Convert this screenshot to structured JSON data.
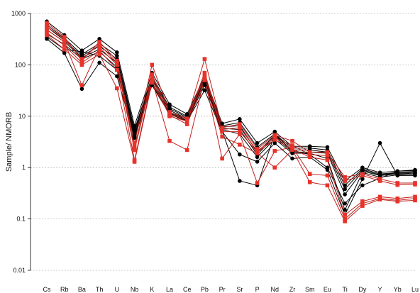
{
  "chart_data": {
    "type": "line",
    "ylabel": "Sample/ NMORB",
    "xlabel": "",
    "y_scale": "log",
    "ylim": [
      0.01,
      1000
    ],
    "y_ticks": [
      1000,
      100,
      10,
      1,
      0.1,
      0.01
    ],
    "y_tick_labels": [
      "1000",
      "100",
      "10",
      "1",
      "0.1",
      "0.01"
    ],
    "grid": "horizontal dotted",
    "legend": "none",
    "categories": [
      "Cs",
      "Rb",
      "Ba",
      "Th",
      "U",
      "Nb",
      "K",
      "La",
      "Ce",
      "Pb",
      "Pr",
      "Sr",
      "P",
      "Nd",
      "Zr",
      "Sm",
      "Eu",
      "Ti",
      "Dy",
      "Y",
      "Yb",
      "Lu"
    ],
    "colors": {
      "black_series": "#000000",
      "red_series": "#e8332a",
      "red_line": "#c0201b",
      "grid": "#bdbdbd"
    },
    "series": [
      {
        "group": "black",
        "marker": "circle",
        "values": [
          700,
          380,
          190,
          320,
          175,
          6.5,
          70,
          17,
          11,
          60,
          7.2,
          8.8,
          3.0,
          5.0,
          2.6,
          2.6,
          2.5,
          0.55,
          1.0,
          0.8,
          0.85,
          0.9
        ]
      },
      {
        "group": "black",
        "marker": "circle",
        "values": [
          600,
          330,
          160,
          260,
          150,
          5.5,
          60,
          15,
          10,
          55,
          6.5,
          7.5,
          2.5,
          4.5,
          2.4,
          2.4,
          2.2,
          0.45,
          0.95,
          0.75,
          0.8,
          0.85
        ]
      },
      {
        "group": "black",
        "marker": "circle",
        "values": [
          550,
          300,
          150,
          230,
          130,
          5.0,
          55,
          14,
          9.5,
          50,
          6.2,
          6.5,
          2.0,
          4.2,
          2.2,
          2.2,
          2.0,
          0.38,
          0.9,
          0.72,
          0.78,
          0.8
        ]
      },
      {
        "group": "black",
        "marker": "circle",
        "values": [
          480,
          280,
          140,
          200,
          110,
          4.5,
          50,
          13,
          9,
          48,
          5.8,
          5.5,
          1.8,
          4.0,
          2.0,
          2.0,
          1.9,
          0.3,
          0.85,
          0.7,
          0.75,
          0.78
        ]
      },
      {
        "group": "black",
        "marker": "circle",
        "values": [
          400,
          250,
          130,
          180,
          90,
          4.2,
          45,
          12,
          8.5,
          45,
          5.5,
          4.5,
          1.6,
          3.6,
          1.9,
          1.9,
          1.5,
          0.15,
          0.8,
          0.65,
          0.72,
          0.75
        ]
      },
      {
        "group": "black",
        "marker": "circle",
        "values": [
          320,
          170,
          34,
          110,
          60,
          3.8,
          40,
          11,
          8,
          32,
          5.0,
          1.8,
          1.3,
          3.0,
          1.5,
          1.6,
          0.9,
          0.12,
          0.6,
          3.0,
          0.7,
          0.7
        ]
      },
      {
        "group": "black",
        "marker": "circle",
        "values": [
          350,
          200,
          180,
          150,
          80,
          4.0,
          42,
          11.5,
          8.2,
          40,
          5.2,
          0.55,
          0.45,
          4.5,
          2.1,
          1.8,
          1.0,
          0.2,
          0.45,
          0.62,
          0.85,
          0.88
        ]
      },
      {
        "group": "red",
        "marker": "square",
        "values": [
          650,
          350,
          120,
          280,
          120,
          3.0,
          100,
          12,
          9,
          130,
          6.0,
          7.0,
          2.3,
          4.3,
          3.3,
          2.0,
          2.0,
          0.65,
          0.75,
          0.6,
          0.5,
          0.5
        ]
      },
      {
        "group": "red",
        "marker": "square",
        "values": [
          550,
          320,
          130,
          250,
          110,
          2.5,
          65,
          11,
          8.5,
          70,
          5.5,
          6.0,
          2.1,
          3.8,
          2.7,
          1.8,
          1.7,
          0.55,
          0.7,
          0.55,
          0.46,
          0.47
        ]
      },
      {
        "group": "red",
        "marker": "square",
        "values": [
          480,
          280,
          40,
          220,
          100,
          2.2,
          55,
          10,
          8,
          60,
          5.0,
          5.0,
          2.0,
          3.5,
          2.3,
          1.6,
          1.4,
          0.12,
          0.22,
          0.27,
          0.25,
          0.27
        ]
      },
      {
        "group": "red",
        "marker": "square",
        "values": [
          420,
          240,
          110,
          190,
          80,
          1.4,
          50,
          3.3,
          2.2,
          55,
          1.5,
          4.5,
          0.5,
          2.1,
          2.5,
          0.75,
          0.7,
          0.1,
          0.2,
          0.25,
          0.23,
          0.25
        ]
      },
      {
        "group": "red",
        "marker": "square",
        "values": [
          380,
          200,
          100,
          160,
          35,
          1.3,
          45,
          10.5,
          7,
          50,
          4.0,
          2.8,
          1.9,
          1.0,
          2.2,
          0.52,
          0.45,
          0.09,
          0.18,
          0.24,
          0.22,
          0.23
        ]
      }
    ]
  }
}
